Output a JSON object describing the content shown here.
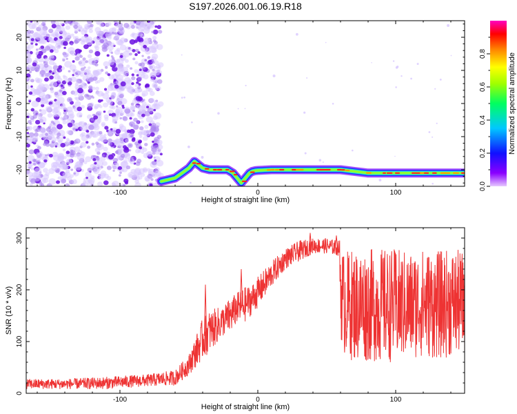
{
  "title": "S197.2026.001.06.19.R18",
  "colors": {
    "snr_line": "#ee3333",
    "axis": "#000000",
    "scatter_light": "#d8c8ff",
    "scatter_mid": "#a880f0",
    "scatter_dark": "#6a10e0"
  },
  "chart_data": [
    {
      "type": "heatmap",
      "name": "spectrogram",
      "xlabel": "Height of straight line (km)",
      "ylabel": "Frequency (Hz)",
      "xlim": [
        -168,
        150
      ],
      "ylim": [
        -25,
        25
      ],
      "xticks": [
        -100,
        0,
        100
      ],
      "xtick_labels": [
        "-100",
        "0",
        "100"
      ],
      "yticks": [
        20,
        10,
        0,
        -10,
        -20
      ],
      "ytick_labels": [
        "20",
        "10",
        "0",
        "-10",
        "-20"
      ],
      "colorbar": {
        "label": "Normalized spectral amplitude",
        "range": [
          0,
          1
        ],
        "ticks": [
          0.0,
          0.2,
          0.4,
          0.6,
          0.8
        ],
        "tick_labels": [
          "0.0",
          "0.2",
          "0.4",
          "0.6",
          "0.8"
        ]
      },
      "noise_region_x": [
        -168,
        -70
      ],
      "signal_track": {
        "x": [
          -70,
          -65,
          -60,
          -55,
          -50,
          -46,
          -43,
          -40,
          -35,
          -28,
          -22,
          -18,
          -15,
          -12,
          -10,
          -8,
          -6,
          -4,
          -2,
          0,
          10,
          20,
          30,
          40,
          50,
          60,
          70,
          80,
          90,
          100,
          110,
          120,
          130,
          140,
          150
        ],
        "y": [
          -23.5,
          -23,
          -22.5,
          -21,
          -19.5,
          -17.5,
          -18.5,
          -19.5,
          -20,
          -20,
          -20,
          -21,
          -22.5,
          -24,
          -23,
          -22,
          -21,
          -20.5,
          -20.3,
          -20.2,
          -20,
          -20,
          -20,
          -20,
          -20,
          -20,
          -20.5,
          -21,
          -21,
          -21,
          -21,
          -21,
          -21,
          -21,
          -21
        ]
      }
    },
    {
      "type": "line",
      "name": "snr",
      "xlabel": "Height of straight line (km)",
      "ylabel": "SNR (10 * v/v)",
      "xlim": [
        -168,
        150
      ],
      "ylim": [
        0,
        320
      ],
      "xticks": [
        -100,
        0,
        100
      ],
      "xtick_labels": [
        "-100",
        "0",
        "100"
      ],
      "yticks": [
        0,
        100,
        200,
        300
      ],
      "ytick_labels": [
        "0",
        "100",
        "200",
        "300"
      ],
      "envelope": {
        "x": [
          -168,
          -140,
          -110,
          -80,
          -60,
          -50,
          -45,
          -40,
          -35,
          -30,
          -25,
          -20,
          -15,
          -10,
          -5,
          0,
          10,
          20,
          30,
          40,
          50,
          59,
          60,
          62,
          70,
          80,
          90,
          100,
          110,
          120,
          130,
          140,
          150
        ],
        "center": [
          18,
          18,
          20,
          25,
          30,
          55,
          80,
          105,
          120,
          130,
          140,
          150,
          165,
          170,
          180,
          195,
          230,
          260,
          275,
          285,
          285,
          280,
          210,
          175,
          170,
          170,
          170,
          170,
          170,
          175,
          170,
          175,
          175
        ],
        "spread": [
          10,
          10,
          12,
          12,
          15,
          20,
          30,
          40,
          40,
          35,
          30,
          35,
          30,
          35,
          30,
          30,
          25,
          20,
          20,
          15,
          15,
          15,
          100,
          100,
          110,
          110,
          110,
          110,
          105,
          105,
          105,
          105,
          100
        ]
      },
      "spikes": [
        {
          "x": -38,
          "y": 210
        },
        {
          "x": -12,
          "y": 240
        },
        {
          "x": 38,
          "y": 310
        },
        {
          "x": 57,
          "y": 305
        }
      ]
    }
  ]
}
